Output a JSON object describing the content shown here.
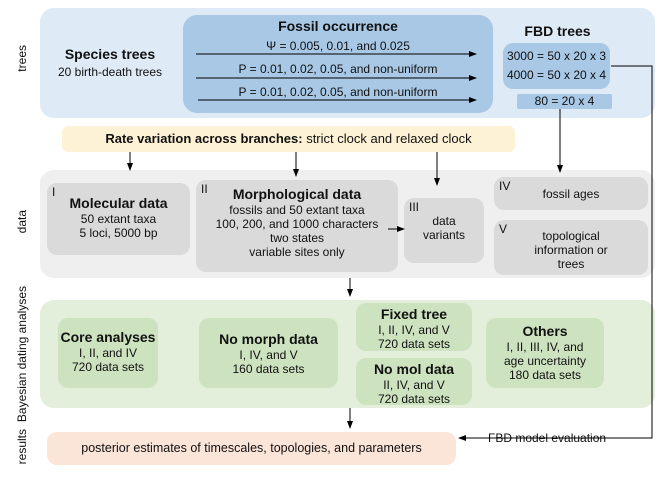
{
  "side_labels": {
    "trees": "trees",
    "data": "data",
    "analyses": "Bayesian dating analyses",
    "results": "results"
  },
  "trees": {
    "species_title": "Species trees",
    "species_sub": "20 birth-death trees",
    "fossil_title": "Fossil occurrence",
    "fossil_lines": [
      "Ψ = 0.005, 0.01, and 0.025",
      "P = 0.01, 0.02, 0.05, and non-uniform",
      "P = 0.01, 0.02, 0.05, and non-uniform"
    ],
    "fbd_title": "FBD trees",
    "fbd_lines": [
      "3000 = 50 x 20 x 3",
      "4000 = 50 x 20 x 4"
    ],
    "fbd_small": "80 = 20 x 4"
  },
  "rate": {
    "bold": "Rate variation across branches:",
    "text": " strict clock and relaxed clock"
  },
  "data": {
    "molecular": {
      "num": "I",
      "title": "Molecular data",
      "lines": [
        "50 extant taxa",
        "5 loci, 5000 bp"
      ]
    },
    "morph": {
      "num": "II",
      "title": "Morphological data",
      "lines": [
        "fossils and 50 extant taxa",
        "100, 200, and 1000 characters",
        "two states",
        "variable sites only"
      ]
    },
    "variants": {
      "num": "III",
      "lines": [
        "data",
        "variants"
      ]
    },
    "ages": {
      "num": "IV",
      "text": "fossil ages"
    },
    "topo": {
      "num": "V",
      "lines": [
        "topological",
        "information or",
        "trees"
      ]
    }
  },
  "analyses": {
    "core": {
      "title": "Core analyses",
      "lines": [
        "I, II, and IV",
        "720 data sets"
      ]
    },
    "nomorph": {
      "title": "No morph data",
      "lines": [
        "I, IV, and V",
        "160 data sets"
      ]
    },
    "fixed": {
      "title": "Fixed tree",
      "lines": [
        "I, II, IV, and V",
        "720 data sets"
      ]
    },
    "nomol": {
      "title": "No mol data",
      "lines": [
        "II, IV, and V",
        "720 data sets"
      ]
    },
    "others": {
      "title": "Others",
      "lines": [
        "I, II, III, IV, and",
        "age uncertainty",
        "180 data sets"
      ]
    }
  },
  "results": {
    "text": "posterior estimates of timescales, topologies, and parameters",
    "fbd_eval": "FBD model evaluation"
  },
  "colors": {
    "trees_panel": "#deeaf6",
    "fossil_box": "#a8c8e6",
    "data_panel": "#efefef",
    "data_box": "#dadada",
    "analyses_panel": "#e3eedb",
    "analyses_box": "#cde2bf",
    "rate_band": "#fdf2d5",
    "results_box": "#fbe4d8"
  }
}
